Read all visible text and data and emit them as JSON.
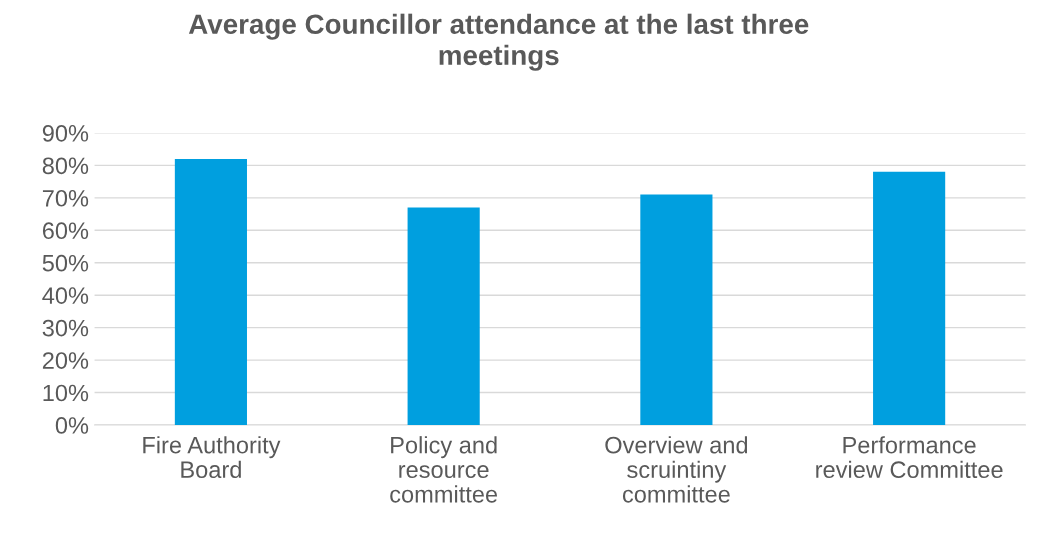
{
  "chart_data": {
    "type": "bar",
    "title": "Average Councillor attendance at the last three\nmeetings",
    "categories": [
      "Fire Authority\nBoard",
      "Policy and\nresource\ncommittee",
      "Overview and\nscruintiny\ncommittee",
      "Performance\nreview Committee"
    ],
    "values": [
      82,
      67,
      71,
      78
    ],
    "color": "#009fdf",
    "ylim": [
      0,
      90
    ],
    "yticks": [
      {
        "value": 0,
        "label": "0%"
      },
      {
        "value": 10,
        "label": "10%"
      },
      {
        "value": 20,
        "label": "20%"
      },
      {
        "value": 30,
        "label": "30%"
      },
      {
        "value": 40,
        "label": "40%"
      },
      {
        "value": 50,
        "label": "50%"
      },
      {
        "value": 60,
        "label": "60%"
      },
      {
        "value": 70,
        "label": "70%"
      },
      {
        "value": 80,
        "label": "80%"
      },
      {
        "value": 90,
        "label": "90%"
      }
    ],
    "grid": "y"
  }
}
